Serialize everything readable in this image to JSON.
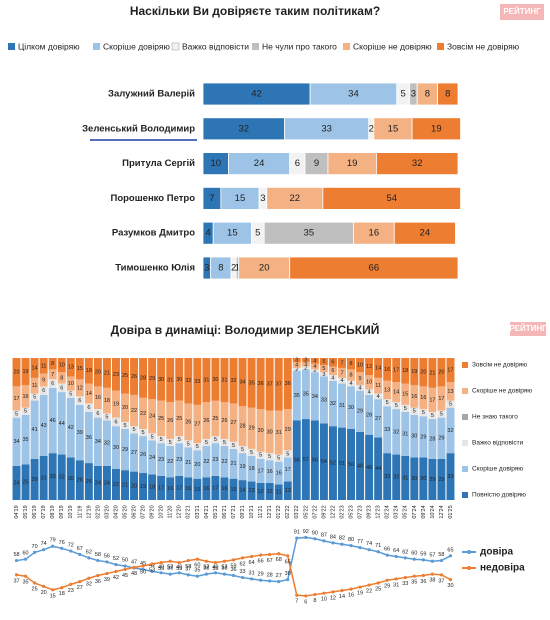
{
  "logo": "РЕЙТИНГ",
  "chart_data": [
    {
      "type": "hbar_stacked",
      "title": "Наскільки Ви довіряєте таким політикам?",
      "categories": [
        "Залужний Валерій",
        "Зеленський Володимир",
        "Притула Сергій",
        "Порошенко Петро",
        "Разумков Дмитро",
        "Тимошенко Юлія"
      ],
      "xlim": [
        0,
        100
      ],
      "series": [
        {
          "name": "Цілком довіряю",
          "color": "#2e75b6",
          "values": [
            42,
            32,
            10,
            7,
            4,
            3
          ]
        },
        {
          "name": "Скоріше довіряю",
          "color": "#9dc3e6",
          "values": [
            34,
            33,
            24,
            15,
            15,
            8
          ]
        },
        {
          "name": "Важко відповісти",
          "color": "#f2f2f2",
          "values": [
            5,
            2,
            6,
            3,
            5,
            2
          ]
        },
        {
          "name": "Не чули про такого",
          "color": "#bfbfbf",
          "values": [
            3,
            null,
            9,
            null,
            35,
            1
          ]
        },
        {
          "name": "Скоріше не довіряю",
          "color": "#f4b183",
          "values": [
            8,
            15,
            19,
            22,
            16,
            20
          ]
        },
        {
          "name": "Зовсім не довіряю",
          "color": "#ed7d31",
          "values": [
            8,
            19,
            32,
            54,
            24,
            66
          ]
        }
      ]
    },
    {
      "type": "column_stacked",
      "title": "Довіра в динаміці: Володимир ЗЕЛЕНСЬКИЙ",
      "categories": [
        "04'19",
        "05'19",
        "06'19",
        "07'19",
        "08'19",
        "09'19",
        "10'19",
        "11'19",
        "12'19",
        "02'20",
        "03'20",
        "04'20",
        "05'20",
        "06'20",
        "07'20",
        "09'20",
        "10'20",
        "11'20",
        "12'20",
        "02'21",
        "03'21",
        "04'21",
        "05'21",
        "06'21",
        "07'21",
        "09'21",
        "10'21",
        "11'21",
        "12'21",
        "01'22",
        "02'22",
        "03'22",
        "05'22",
        "07'22",
        "09'22",
        "12'22",
        "02'23",
        "05'23",
        "07'23",
        "09'23",
        "12'23",
        "02'24",
        "03'24",
        "05'24",
        "07'24",
        "09'24",
        "10'24",
        "12'24",
        "01'25"
      ],
      "ylim": [
        0,
        100
      ],
      "series": [
        {
          "name": "Повністю довіряю",
          "color": "#2e75b6",
          "values": [
            24,
            25,
            29,
            31,
            33,
            32,
            30,
            28,
            26,
            24,
            24,
            22,
            21,
            20,
            19,
            18,
            17,
            16,
            17,
            16,
            15,
            16,
            17,
            16,
            15,
            14,
            13,
            12,
            12,
            11,
            13,
            56,
            57,
            56,
            54,
            52,
            51,
            50,
            48,
            46,
            44,
            33,
            32,
            31,
            30,
            30,
            29,
            29,
            33
          ]
        },
        {
          "name": "Скоріше довіряю",
          "color": "#9dc3e6",
          "values": [
            34,
            35,
            41,
            43,
            46,
            44,
            42,
            39,
            36,
            34,
            32,
            30,
            29,
            27,
            26,
            24,
            23,
            22,
            23,
            21,
            20,
            22,
            23,
            22,
            21,
            19,
            18,
            17,
            16,
            16,
            17,
            35,
            35,
            34,
            33,
            32,
            31,
            30,
            29,
            28,
            27,
            33,
            32,
            31,
            30,
            29,
            28,
            29,
            32
          ]
        },
        {
          "name": "Важко відповісти",
          "color": "#e7e6e6",
          "values": [
            5,
            5,
            5,
            6,
            6,
            6,
            5,
            6,
            6,
            6,
            5,
            6,
            5,
            5,
            5,
            5,
            5,
            5,
            5,
            5,
            5,
            5,
            5,
            5,
            5,
            5,
            5,
            5,
            5,
            5,
            5,
            2,
            2,
            2,
            3,
            4,
            4,
            4,
            4,
            4,
            4,
            5,
            5,
            5,
            5,
            5,
            5,
            5,
            5
          ]
        },
        {
          "name": "Не знаю такого",
          "color": "#a6a6a6",
          "values": [
            null,
            null,
            null,
            null,
            null,
            null,
            null,
            null,
            null,
            null,
            null,
            null,
            null,
            null,
            null,
            null,
            null,
            null,
            null,
            null,
            null,
            null,
            null,
            null,
            null,
            null,
            null,
            null,
            null,
            null,
            null,
            null,
            null,
            null,
            null,
            null,
            null,
            null,
            null,
            null,
            null,
            null,
            null,
            null,
            null,
            null,
            null,
            null,
            null
          ]
        },
        {
          "name": "Скоріше не довіряю",
          "color": "#f4b183",
          "values": [
            17,
            16,
            11,
            9,
            7,
            8,
            10,
            12,
            14,
            16,
            18,
            19,
            20,
            22,
            22,
            24,
            25,
            26,
            25,
            26,
            27,
            26,
            25,
            26,
            27,
            28,
            29,
            30,
            30,
            31,
            29,
            4,
            3,
            4,
            5,
            6,
            7,
            8,
            9,
            10,
            11,
            13,
            14,
            15,
            16,
            16,
            17,
            17,
            13
          ]
        },
        {
          "name": "Зовсім не довіряю",
          "color": "#ed7d31",
          "values": [
            20,
            19,
            14,
            11,
            8,
            10,
            13,
            15,
            18,
            20,
            21,
            23,
            25,
            26,
            28,
            29,
            30,
            31,
            30,
            32,
            33,
            31,
            30,
            31,
            32,
            34,
            35,
            36,
            37,
            37,
            36,
            3,
            3,
            4,
            5,
            6,
            7,
            8,
            10,
            12,
            14,
            16,
            17,
            18,
            19,
            20,
            21,
            20,
            17
          ]
        }
      ]
    },
    {
      "type": "line",
      "ylim": [
        0,
        100
      ],
      "series": [
        {
          "name": "довіра",
          "color": "#5b9bd5",
          "values": [
            58,
            60,
            70,
            74,
            79,
            76,
            72,
            67,
            62,
            58,
            56,
            52,
            50,
            47,
            45,
            42,
            40,
            38,
            40,
            37,
            35,
            38,
            40,
            38,
            36,
            33,
            31,
            29,
            28,
            27,
            30,
            91,
            92,
            90,
            87,
            84,
            82,
            80,
            77,
            74,
            71,
            66,
            64,
            62,
            60,
            59,
            57,
            58,
            65
          ]
        },
        {
          "name": "недовіра",
          "color": "#ed7d31",
          "values": [
            37,
            35,
            25,
            20,
            15,
            18,
            23,
            27,
            32,
            36,
            39,
            42,
            45,
            48,
            50,
            53,
            55,
            57,
            55,
            58,
            60,
            57,
            55,
            57,
            59,
            62,
            64,
            66,
            67,
            68,
            65,
            7,
            6,
            8,
            10,
            12,
            14,
            16,
            19,
            22,
            25,
            29,
            31,
            33,
            35,
            36,
            38,
            37,
            30
          ]
        }
      ]
    }
  ]
}
